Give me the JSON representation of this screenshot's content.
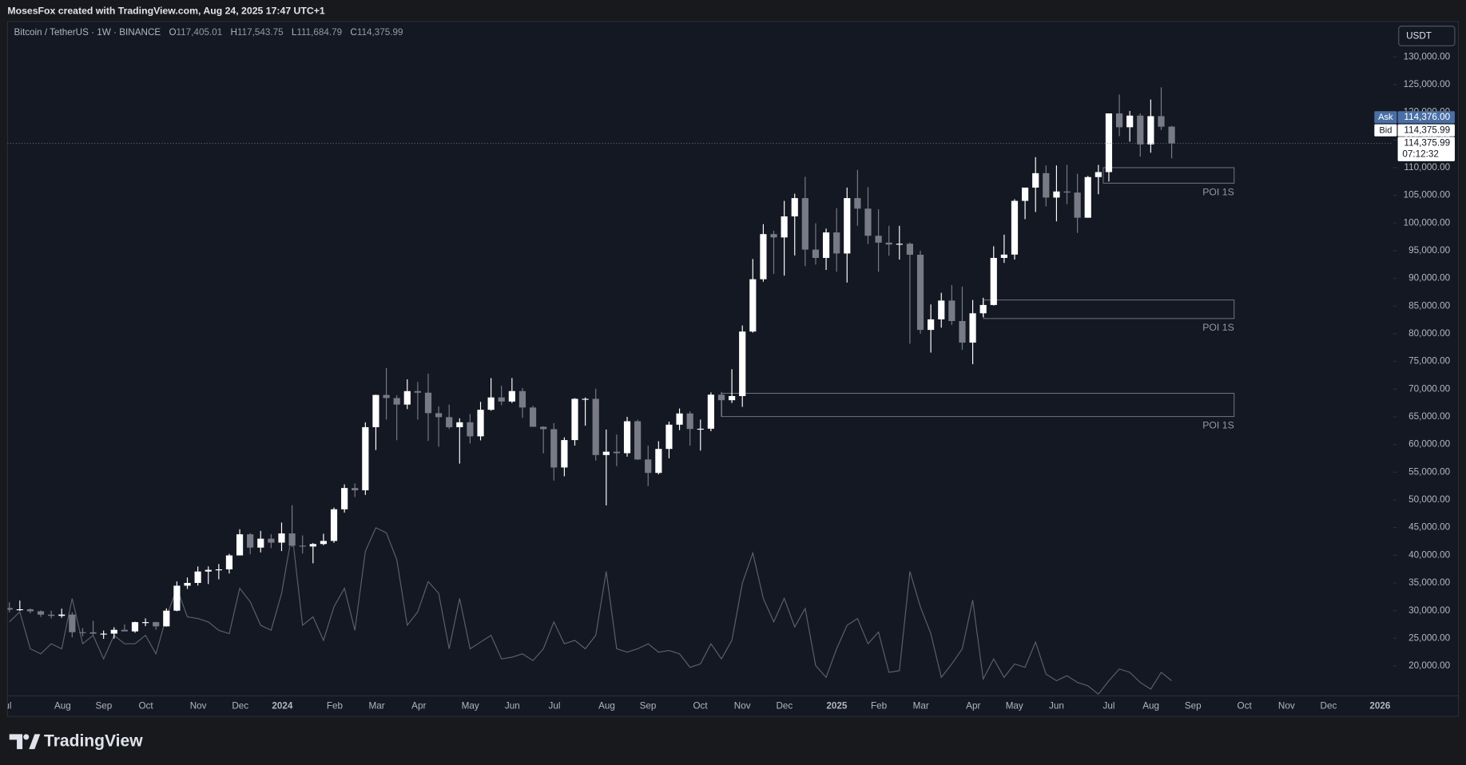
{
  "header": {
    "credit": "MosesFox created with TradingView.com, Aug 24, 2025 17:47 UTC+1",
    "brand": "TradingView",
    "currency_button": "USDT"
  },
  "chart_data": {
    "type": "candlestick",
    "title": "Bitcoin / TetherUS · 1W · BINANCE",
    "ohlc_labels": [
      "O",
      "H",
      "L",
      "C"
    ],
    "ohlc_texts": [
      "117,405.01",
      "117,543.75",
      "111,684.79",
      "114,375.99"
    ],
    "up_color": "#ffffff",
    "down_color": "#787b86",
    "volume_color": "#5d606b",
    "open": [
      30470,
      30170,
      30240,
      29880,
      29270,
      29050,
      29290,
      26100,
      26090,
      25840,
      25840,
      26530,
      26250,
      27920,
      27920,
      27160,
      29990,
      34500,
      35000,
      37060,
      37360,
      37450,
      39970,
      43780,
      41380,
      42990,
      42280,
      43940,
      41730,
      41580,
      42030,
      42580,
      48300,
      52140,
      51730,
      63130,
      68950,
      68390,
      67210,
      69640,
      69360,
      65660,
      64940,
      63120,
      64010,
      61480,
      66270,
      68500,
      67760,
      69650,
      66680,
      63200,
      62770,
      55850,
      60800,
      68250,
      68250,
      58100,
      58700,
      58430,
      64200,
      57300,
      54870,
      59200,
      63580,
      65610,
      62800,
      62850,
      69000,
      68000,
      68750,
      80400,
      89850,
      98000,
      97400,
      101200,
      104500,
      95200,
      93700,
      98300,
      94500,
      104500,
      102600,
      97700,
      96460,
      96120,
      96260,
      94270,
      80700,
      82600,
      86000,
      82300,
      78400,
      83700,
      85200,
      93700,
      94300,
      104000,
      106400,
      109000,
      104600,
      105700,
      105500,
      100960,
      108300,
      109200,
      119800,
      117300,
      119400,
      114200,
      119300,
      117405.01
    ],
    "high": [
      31500,
      31800,
      30400,
      30050,
      29980,
      30350,
      29690,
      26830,
      28150,
      26400,
      27000,
      27480,
      28000,
      28600,
      28000,
      30400,
      35280,
      35980,
      37970,
      37980,
      38420,
      40250,
      44700,
      44000,
      44400,
      43800,
      45900,
      49050,
      43580,
      42200,
      43880,
      48600,
      52800,
      52980,
      64000,
      69000,
      73800,
      68900,
      71770,
      71300,
      72800,
      66900,
      67200,
      64730,
      65500,
      67700,
      71980,
      70600,
      72000,
      70200,
      66990,
      63300,
      63860,
      61300,
      68370,
      68500,
      70080,
      62700,
      61800,
      65000,
      64500,
      59800,
      60600,
      64130,
      66500,
      66000,
      64500,
      69400,
      69500,
      73600,
      81500,
      93500,
      99800,
      98600,
      104000,
      105300,
      108350,
      99950,
      99000,
      102700,
      106400,
      109600,
      106500,
      102500,
      99500,
      99500,
      96500,
      95000,
      85300,
      87400,
      88800,
      88500,
      86100,
      86500,
      95800,
      97900,
      104300,
      105800,
      111900,
      110400,
      110400,
      110500,
      108900,
      108500,
      110500,
      119500,
      123200,
      120250,
      119800,
      122300,
      124500,
      117543.75
    ],
    "low": [
      29700,
      29950,
      29500,
      28850,
      28580,
      28700,
      25170,
      25350,
      25650,
      24900,
      24930,
      26380,
      26000,
      27200,
      26540,
      27110,
      29890,
      33900,
      34520,
      34800,
      35640,
      36700,
      39970,
      40200,
      40500,
      41300,
      40750,
      41500,
      40300,
      38550,
      41800,
      42250,
      47700,
      50500,
      50900,
      59000,
      64500,
      60770,
      66400,
      64500,
      60650,
      59600,
      62800,
      56550,
      60190,
      60750,
      66100,
      67100,
      67500,
      64800,
      63380,
      58400,
      53500,
      54260,
      59800,
      63400,
      57100,
      49000,
      56100,
      57800,
      57200,
      52500,
      54600,
      57500,
      62600,
      59800,
      58900,
      62400,
      65000,
      67500,
      66800,
      80200,
      89400,
      90800,
      90500,
      94150,
      92200,
      92500,
      91530,
      91200,
      89250,
      99500,
      96200,
      91200,
      94100,
      93400,
      78200,
      80000,
      76600,
      81100,
      81600,
      77100,
      74500,
      83000,
      85100,
      92800,
      93400,
      100700,
      102000,
      103000,
      100300,
      103400,
      98200,
      100950,
      105200,
      107500,
      115700,
      114700,
      112000,
      112700,
      116800,
      111684.79
    ],
    "close": [
      30170,
      30240,
      29880,
      29270,
      29050,
      29290,
      26100,
      26090,
      25840,
      25840,
      26530,
      26250,
      27920,
      27920,
      27160,
      29990,
      34500,
      35000,
      37060,
      37360,
      37450,
      39970,
      43780,
      41380,
      42990,
      42280,
      43940,
      41730,
      41580,
      42030,
      42580,
      48300,
      52140,
      51730,
      63130,
      68950,
      68390,
      67210,
      69640,
      69360,
      65660,
      64940,
      63120,
      64010,
      61480,
      66270,
      68500,
      67760,
      69650,
      66680,
      63200,
      62770,
      55850,
      60800,
      68250,
      68250,
      58100,
      58700,
      58430,
      64200,
      57300,
      54870,
      59200,
      63580,
      65610,
      62800,
      62850,
      69000,
      68000,
      68750,
      80400,
      89850,
      98000,
      97400,
      101200,
      104500,
      95200,
      93700,
      98300,
      94500,
      104500,
      102600,
      97700,
      96460,
      96120,
      96260,
      94270,
      80700,
      82600,
      86000,
      82300,
      78400,
      83700,
      85200,
      93700,
      94300,
      104000,
      106400,
      109000,
      104600,
      105700,
      105500,
      100960,
      108300,
      109200,
      119800,
      117300,
      119400,
      114200,
      119300,
      117400,
      114375.99
    ],
    "volume": [
      44,
      50,
      28,
      25,
      31,
      28,
      58,
      31,
      36,
      22,
      36,
      31,
      31,
      36,
      25,
      47,
      64,
      47,
      46,
      44,
      39,
      37,
      64,
      56,
      42,
      39,
      61,
      97,
      42,
      47,
      33,
      53,
      64,
      39,
      86,
      100,
      97,
      81,
      42,
      50,
      68,
      61,
      28,
      58,
      28,
      32,
      36,
      22,
      23,
      25,
      21,
      28,
      44,
      31,
      33,
      28,
      36,
      74,
      28,
      26,
      28,
      31,
      26,
      27,
      25,
      17,
      19,
      31,
      22,
      33,
      67,
      85,
      58,
      44,
      58,
      41,
      52,
      18,
      11,
      28,
      42,
      46,
      31,
      38,
      14,
      15,
      74,
      53,
      37,
      11,
      19,
      28,
      57,
      10,
      22,
      11,
      19,
      17,
      32,
      13,
      9,
      12,
      8,
      6,
      1,
      9,
      16,
      14,
      8,
      4,
      14,
      9
    ],
    "volume_lim": [
      0,
      100
    ],
    "ylim": [
      14600,
      136400
    ],
    "yticks": [
      {
        "value": 130000,
        "label": "130,000.00"
      },
      {
        "value": 125000,
        "label": "125,000.00"
      },
      {
        "value": 120000,
        "label": "120,000.00"
      },
      {
        "value": 115000,
        "label": "115,000.00"
      },
      {
        "value": 110000,
        "label": "110,000.00"
      },
      {
        "value": 105000,
        "label": "105,000.00"
      },
      {
        "value": 100000,
        "label": "100,000.00"
      },
      {
        "value": 95000,
        "label": "95,000.00"
      },
      {
        "value": 90000,
        "label": "90,000.00"
      },
      {
        "value": 85000,
        "label": "85,000.00"
      },
      {
        "value": 80000,
        "label": "80,000.00"
      },
      {
        "value": 75000,
        "label": "75,000.00"
      },
      {
        "value": 70000,
        "label": "70,000.00"
      },
      {
        "value": 65000,
        "label": "65,000.00"
      },
      {
        "value": 60000,
        "label": "60,000.00"
      },
      {
        "value": 55000,
        "label": "55,000.00"
      },
      {
        "value": 50000,
        "label": "50,000.00"
      },
      {
        "value": 45000,
        "label": "45,000.00"
      },
      {
        "value": 40000,
        "label": "40,000.00"
      },
      {
        "value": 35000,
        "label": "35,000.00"
      },
      {
        "value": 30000,
        "label": "30,000.00"
      },
      {
        "value": 25000,
        "label": "25,000.00"
      },
      {
        "value": 20000,
        "label": "20,000.00"
      }
    ],
    "x_labels": [
      "Jul",
      "Aug",
      "Sep",
      "Oct",
      "Nov",
      "Dec",
      "2024",
      "Feb",
      "Mar",
      "Apr",
      "May",
      "Jun",
      "Jul",
      "Aug",
      "Sep",
      "Oct",
      "Nov",
      "Dec",
      "2025",
      "Feb",
      "Mar",
      "Apr",
      "May",
      "Jun",
      "Jul",
      "Aug",
      "Sep",
      "Oct",
      "Nov",
      "Dec",
      "2026"
    ],
    "zones": [
      {
        "label": "POI 1S",
        "high": 110000,
        "low": 107200
      },
      {
        "label": "POI 1S",
        "high": 86100,
        "low": 82750
      },
      {
        "label": "POI 1S",
        "high": 69250,
        "low": 65050
      }
    ],
    "price_tags": [
      {
        "label": "Ask",
        "text": "114,376.00",
        "color": "#4a6fa5"
      },
      {
        "label": "Bid",
        "text": "114,375.99",
        "color": "#ffffff"
      }
    ],
    "last_price": {
      "text": "114,375.99",
      "countdown": "07:12:32"
    }
  }
}
